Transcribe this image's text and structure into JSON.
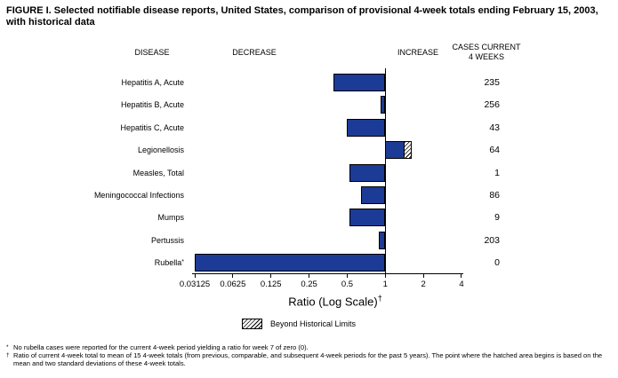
{
  "title_line1": "FIGURE I. Selected notifiable disease reports, United States, comparison of provisional 4-week totals ending February 15, 2003,",
  "title_line2": "with historical data",
  "columns": {
    "disease": "DISEASE",
    "decrease": "DECREASE",
    "increase": "INCREASE",
    "cases_line1": "CASES CURRENT",
    "cases_line2": "4 WEEKS"
  },
  "chart_data": {
    "type": "bar",
    "orientation": "horizontal",
    "scale": "log2",
    "baseline_value": 1,
    "xlim": [
      0.03125,
      4
    ],
    "xlabel": "Ratio (Log Scale)",
    "xlabel_superscript": "†",
    "tick_labels": [
      "0.03125",
      "0.0625",
      "0.125",
      "0.25",
      "0.5",
      "1",
      "2",
      "4"
    ],
    "legend": {
      "label": "Beyond Historical Limits",
      "pattern": "diagonal-hatch"
    },
    "rows": [
      {
        "label": "Hepatitis A, Acute",
        "ratio": 0.39,
        "cases": "235"
      },
      {
        "label": "Hepatitis B, Acute",
        "ratio": 0.92,
        "cases": "256"
      },
      {
        "label": "Hepatitis C, Acute",
        "ratio": 0.5,
        "cases": "43"
      },
      {
        "label": "Legionellosis",
        "ratio": 1.63,
        "beyond_from": 1.45,
        "cases": "64"
      },
      {
        "label": "Measles, Total",
        "ratio": 0.52,
        "cases": "1"
      },
      {
        "label": "Meningococcal Infections",
        "ratio": 0.64,
        "cases": "86"
      },
      {
        "label": "Mumps",
        "ratio": 0.52,
        "cases": "9"
      },
      {
        "label": "Pertussis",
        "ratio": 0.89,
        "cases": "203"
      },
      {
        "label": "Rubella",
        "label_superscript": "*",
        "ratio": 0.03125,
        "cases": "0"
      }
    ],
    "colors": {
      "bar": "#1c3b96",
      "axis": "#000000"
    }
  },
  "footnotes": [
    {
      "marker": "*",
      "text": "No rubella cases were reported for the current 4-week period yielding a ratio for week 7 of zero (0)."
    },
    {
      "marker": "†",
      "text": "Ratio of current 4-week total to mean of 15 4-week totals (from previous, comparable, and subsequent 4-week periods for the past 5 years). The point where the hatched area begins is based on the mean and two standard deviations of these 4-week totals."
    }
  ]
}
